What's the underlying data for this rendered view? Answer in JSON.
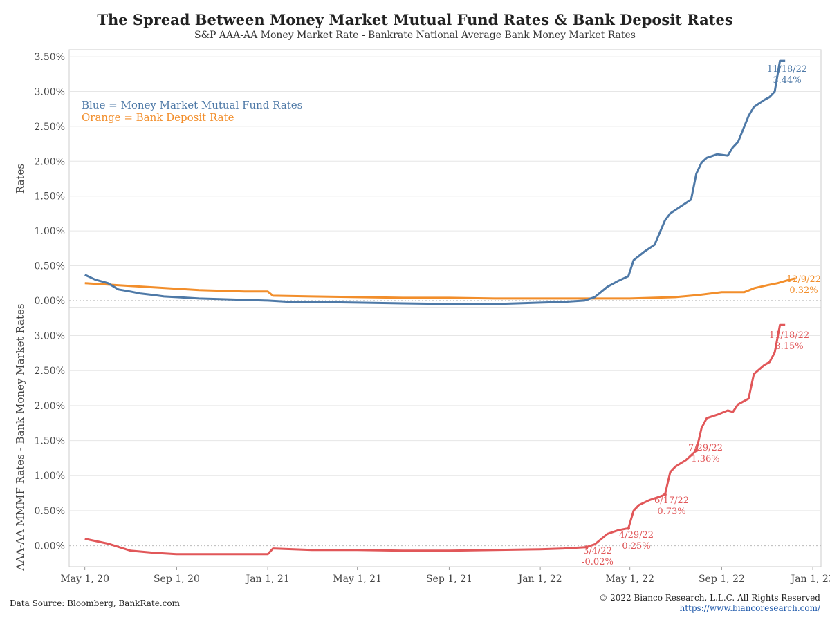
{
  "title": "The Spread Between Money Market Mutual Fund Rates & Bank Deposit Rates",
  "subtitle": "S&P AAA-AA Money Market Rate - Bankrate National Average Bank Money Market Rates",
  "footer": {
    "source": "Data Source: Bloomberg, BankRate.com",
    "copyright": "© 2022 Bianco Research, L.L.C. All Rights Reserved",
    "url": "https://www.biancoresearch.com/"
  },
  "colors": {
    "blue": "#4e79a7",
    "orange": "#f28e2b",
    "red": "#e15759",
    "grid": "#e6e6e6"
  },
  "chart_data": [
    {
      "type": "line",
      "ylabel": "Rates",
      "ylim": [
        -0.1,
        3.6
      ],
      "ytick_labels": [
        "0.00%",
        "0.50%",
        "1.00%",
        "1.50%",
        "2.00%",
        "2.50%",
        "3.00%",
        "3.50%"
      ],
      "ytick_values": [
        0,
        0.5,
        1.0,
        1.5,
        2.0,
        2.5,
        3.0,
        3.5
      ],
      "legend_text": [
        "Blue = Money Market Mutual Fund Rates",
        "Orange = Bank Deposit Rate"
      ],
      "legend_placement": "top-left",
      "series": [
        {
          "color": "#4e79a7",
          "x": [
            "2020-05-01",
            "2020-05-15",
            "2020-06-01",
            "2020-06-15",
            "2020-07-01",
            "2020-07-15",
            "2020-08-01",
            "2020-08-15",
            "2020-09-01",
            "2020-10-01",
            "2020-11-01",
            "2020-12-01",
            "2021-01-01",
            "2021-02-01",
            "2021-03-01",
            "2021-05-01",
            "2021-07-01",
            "2021-09-01",
            "2021-11-01",
            "2022-01-01",
            "2022-02-01",
            "2022-03-01",
            "2022-03-15",
            "2022-04-01",
            "2022-04-15",
            "2022-04-29",
            "2022-05-06",
            "2022-05-20",
            "2022-06-03",
            "2022-06-17",
            "2022-06-24",
            "2022-07-08",
            "2022-07-22",
            "2022-07-29",
            "2022-08-05",
            "2022-08-12",
            "2022-08-26",
            "2022-09-09",
            "2022-09-16",
            "2022-09-23",
            "2022-10-07",
            "2022-10-14",
            "2022-10-28",
            "2022-11-04",
            "2022-11-11",
            "2022-11-18",
            "2022-11-25"
          ],
          "y": [
            0.37,
            0.3,
            0.25,
            0.16,
            0.13,
            0.1,
            0.08,
            0.06,
            0.05,
            0.03,
            0.02,
            0.01,
            0.0,
            -0.02,
            -0.02,
            -0.03,
            -0.04,
            -0.05,
            -0.05,
            -0.03,
            -0.02,
            0.0,
            0.05,
            0.2,
            0.28,
            0.35,
            0.58,
            0.7,
            0.8,
            1.15,
            1.25,
            1.35,
            1.45,
            1.82,
            1.98,
            2.05,
            2.1,
            2.08,
            2.2,
            2.28,
            2.65,
            2.78,
            2.88,
            2.92,
            3.0,
            3.44,
            3.44
          ],
          "annotations": [
            {
              "date": "11/18/22",
              "value": "3.44%"
            }
          ]
        },
        {
          "color": "#f28e2b",
          "x": [
            "2020-05-01",
            "2020-06-01",
            "2020-07-01",
            "2020-08-01",
            "2020-09-01",
            "2020-10-01",
            "2020-11-01",
            "2020-12-01",
            "2021-01-01",
            "2021-01-08",
            "2021-03-01",
            "2021-05-01",
            "2021-07-01",
            "2021-09-01",
            "2021-11-01",
            "2022-01-01",
            "2022-03-01",
            "2022-05-01",
            "2022-06-01",
            "2022-07-01",
            "2022-08-01",
            "2022-09-01",
            "2022-10-01",
            "2022-10-15",
            "2022-11-01",
            "2022-11-15",
            "2022-12-01",
            "2022-12-09"
          ],
          "y": [
            0.25,
            0.23,
            0.21,
            0.19,
            0.17,
            0.15,
            0.14,
            0.13,
            0.13,
            0.07,
            0.06,
            0.05,
            0.04,
            0.04,
            0.03,
            0.03,
            0.03,
            0.03,
            0.04,
            0.05,
            0.08,
            0.12,
            0.12,
            0.18,
            0.22,
            0.25,
            0.3,
            0.32
          ],
          "annotations": [
            {
              "date": "12/9/22",
              "value": "0.32%"
            }
          ]
        }
      ]
    },
    {
      "type": "line",
      "ylabel": "AAA-AA MMMF Rates - Bank Money Market Rates",
      "ylim": [
        -0.3,
        3.4
      ],
      "ytick_labels": [
        "0.00%",
        "0.50%",
        "1.00%",
        "1.50%",
        "2.00%",
        "2.50%",
        "3.00%"
      ],
      "ytick_values": [
        0,
        0.5,
        1.0,
        1.5,
        2.0,
        2.5,
        3.0
      ],
      "xtick_labels": [
        "May 1, 20",
        "Sep 1, 20",
        "Jan 1, 21",
        "May 1, 21",
        "Sep 1, 21",
        "Jan 1, 22",
        "May 1, 22",
        "Sep 1, 22",
        "Jan 1, 23"
      ],
      "xtick_values": [
        "2020-05-01",
        "2020-09-01",
        "2021-01-01",
        "2021-05-01",
        "2021-09-01",
        "2022-01-01",
        "2022-05-01",
        "2022-09-01",
        "2023-01-01"
      ],
      "x_range": [
        "2020-04-10",
        "2023-01-12"
      ],
      "series": [
        {
          "color": "#e15759",
          "x": [
            "2020-05-01",
            "2020-06-01",
            "2020-07-01",
            "2020-08-01",
            "2020-09-01",
            "2020-10-01",
            "2020-11-01",
            "2020-12-01",
            "2021-01-01",
            "2021-01-08",
            "2021-03-01",
            "2021-05-01",
            "2021-07-01",
            "2021-09-01",
            "2021-11-01",
            "2022-01-01",
            "2022-02-01",
            "2022-03-04",
            "2022-03-15",
            "2022-04-01",
            "2022-04-15",
            "2022-04-29",
            "2022-05-06",
            "2022-05-13",
            "2022-05-27",
            "2022-06-10",
            "2022-06-17",
            "2022-06-24",
            "2022-07-01",
            "2022-07-15",
            "2022-07-29",
            "2022-08-05",
            "2022-08-12",
            "2022-08-26",
            "2022-09-09",
            "2022-09-16",
            "2022-09-23",
            "2022-10-07",
            "2022-10-14",
            "2022-10-28",
            "2022-11-04",
            "2022-11-11",
            "2022-11-18",
            "2022-11-25"
          ],
          "y": [
            0.1,
            0.03,
            -0.07,
            -0.1,
            -0.12,
            -0.12,
            -0.12,
            -0.12,
            -0.12,
            -0.04,
            -0.06,
            -0.06,
            -0.07,
            -0.07,
            -0.06,
            -0.05,
            -0.04,
            -0.02,
            0.02,
            0.17,
            0.22,
            0.25,
            0.5,
            0.58,
            0.65,
            0.7,
            0.73,
            1.05,
            1.13,
            1.22,
            1.36,
            1.68,
            1.82,
            1.87,
            1.93,
            1.91,
            2.02,
            2.1,
            2.45,
            2.58,
            2.62,
            2.76,
            3.15,
            3.15
          ],
          "annotations": [
            {
              "date": "3/4/22",
              "value": "-0.02%"
            },
            {
              "date": "4/29/22",
              "value": "0.25%"
            },
            {
              "date": "6/17/22",
              "value": "0.73%"
            },
            {
              "date": "7/29/22",
              "value": "1.36%"
            },
            {
              "date": "11/18/22",
              "value": "3.15%"
            }
          ]
        }
      ]
    }
  ]
}
